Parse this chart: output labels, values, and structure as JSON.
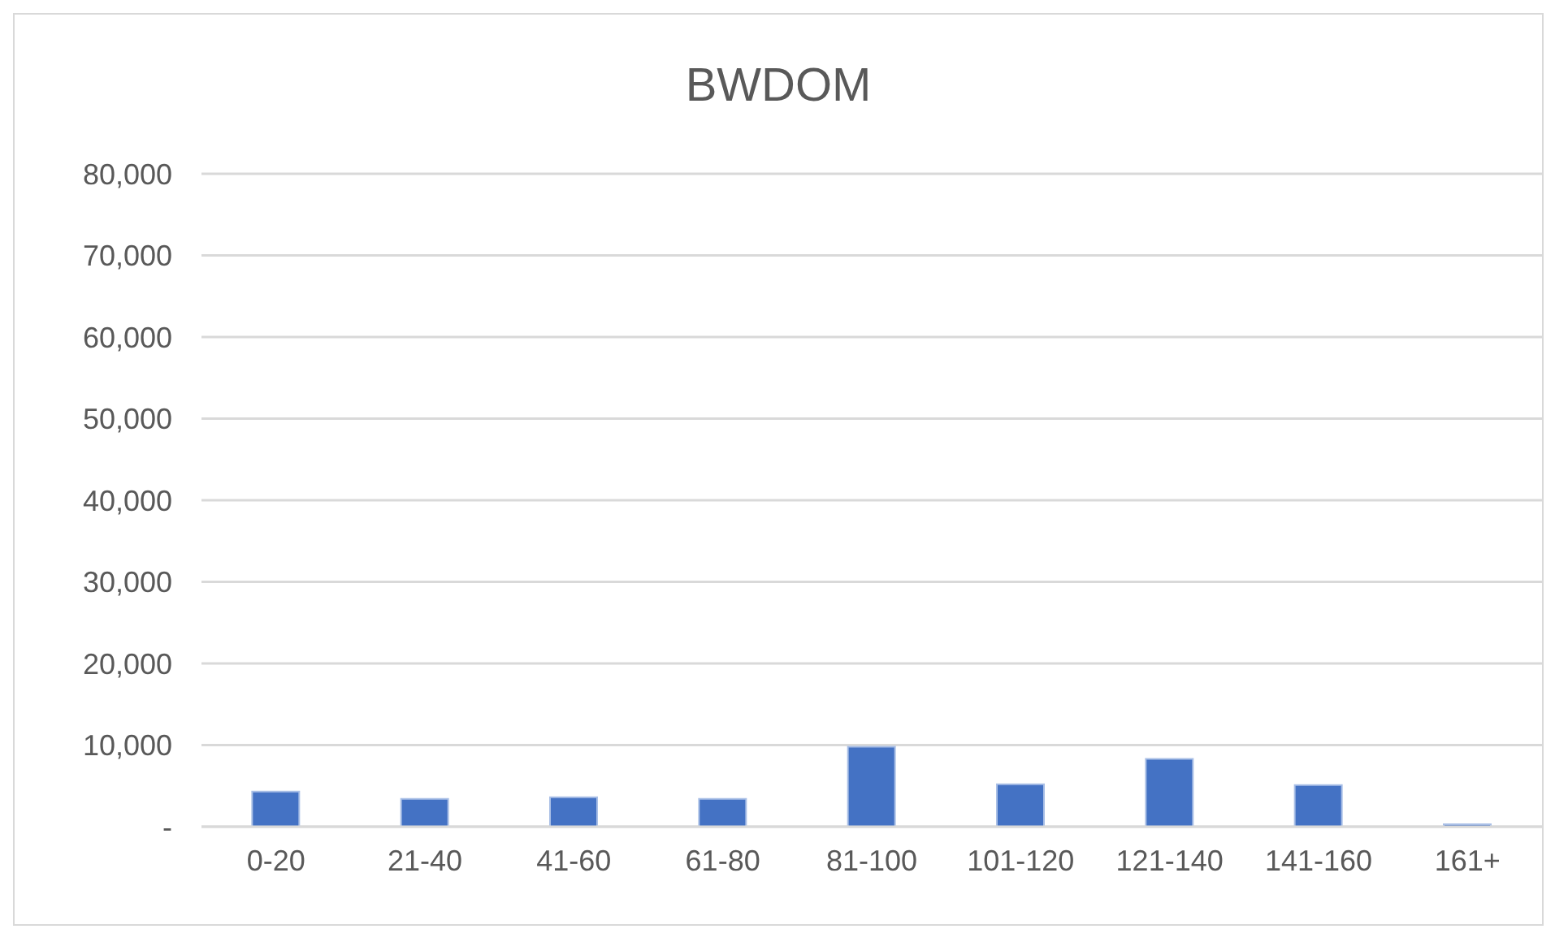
{
  "chart_data": {
    "type": "bar",
    "title": "BWDOM",
    "categories": [
      "0-20",
      "21-40",
      "41-60",
      "61-80",
      "81-100",
      "101-120",
      "121-140",
      "141-160",
      "161+"
    ],
    "values": [
      4300,
      3400,
      3600,
      3400,
      9800,
      5200,
      8300,
      5100,
      300
    ],
    "color": "#4472c4",
    "ylim": [
      0,
      80000
    ],
    "yticks": [
      {
        "value": 0,
        "label": "-"
      },
      {
        "value": 10000,
        "label": "10,000"
      },
      {
        "value": 20000,
        "label": "20,000"
      },
      {
        "value": 30000,
        "label": "30,000"
      },
      {
        "value": 40000,
        "label": "40,000"
      },
      {
        "value": 50000,
        "label": "50,000"
      },
      {
        "value": 60000,
        "label": "60,000"
      },
      {
        "value": 70000,
        "label": "70,000"
      },
      {
        "value": 80000,
        "label": "80,000"
      }
    ],
    "grid": "y"
  }
}
